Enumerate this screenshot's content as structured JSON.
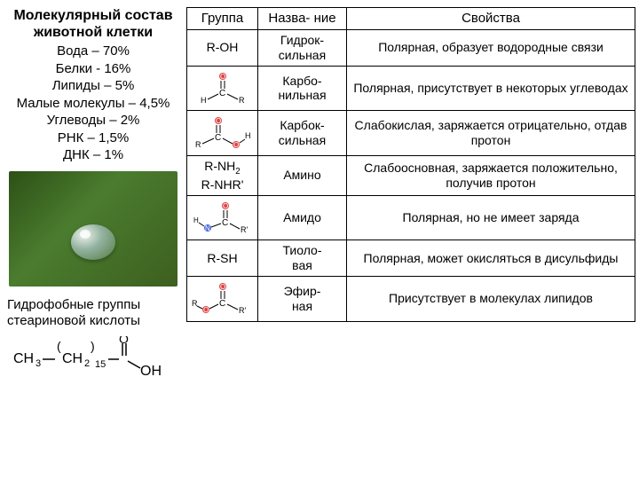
{
  "title": "Молекулярный состав животной клетки",
  "composition": {
    "water": "Вода     – 70%",
    "proteins": "Белки    - 16%",
    "lipids": "Липиды  –   5%",
    "small": "Малые молекулы – 4,5%",
    "carbs": "Углеводы – 2%",
    "rna": "РНК       – 1,5%",
    "dna": "ДНК       – 1%"
  },
  "hydroLabel": "Гидрофобные группы стеариновой кислоты",
  "table": {
    "headers": {
      "group": "Группа",
      "name": "Назва-\nние",
      "props": "Свойства"
    },
    "rows": [
      {
        "group": "R-OH",
        "name": "Гидрок-\nсильная",
        "props": "Полярная, образует водородные связи"
      },
      {
        "group": "svg-carbonyl",
        "name": "Карбо-\nнильная",
        "props": "Полярная, присутствует в некоторых углеводах"
      },
      {
        "group": "svg-carboxyl",
        "name": "Карбок-\nсильная",
        "props": "Слабокислая, заряжается отрицательно, отдав протон"
      },
      {
        "group": "R-NH₂\nR-NHR'",
        "name": "Амино",
        "props": "Слабоосновная, заряжается положительно, получив протон"
      },
      {
        "group": "svg-amido",
        "name": "Амидо",
        "props": "Полярная, но не имеет заряда"
      },
      {
        "group": "R-SH",
        "name": "Тиоло-\nвая",
        "props": "Полярная, может окисляться в  дисульфиды"
      },
      {
        "group": "svg-ester",
        "name": "Эфир-\nная",
        "props": "Присутствует в молекулах липидов"
      }
    ]
  },
  "colors": {
    "border": "#000000",
    "bg": "#ffffff",
    "leafDark": "#2d5016",
    "leafLight": "#4a7c2e",
    "oxygenRed": "#d44",
    "nitrogenBlue": "#46d"
  }
}
